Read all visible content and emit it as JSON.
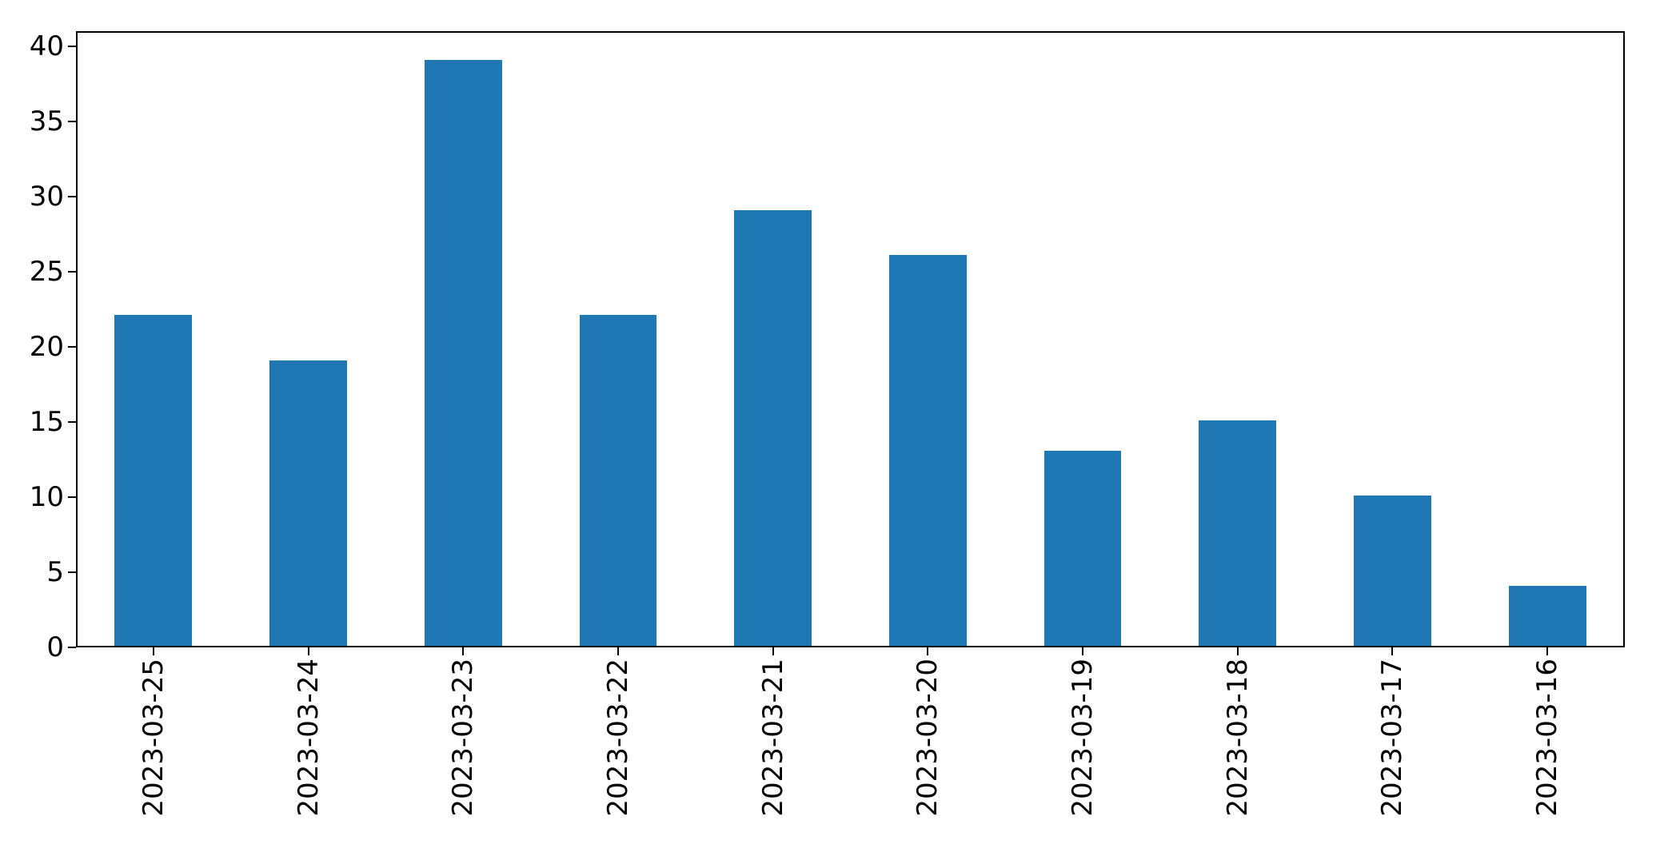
{
  "chart_data": {
    "type": "bar",
    "categories": [
      "2023-03-25",
      "2023-03-24",
      "2023-03-23",
      "2023-03-22",
      "2023-03-21",
      "2023-03-20",
      "2023-03-19",
      "2023-03-18",
      "2023-03-17",
      "2023-03-16"
    ],
    "values": [
      22,
      19,
      39,
      22,
      29,
      26,
      13,
      15,
      10,
      4
    ],
    "title": "",
    "xlabel": "",
    "ylabel": "",
    "ylim": [
      0,
      41
    ],
    "yticks": [
      0,
      5,
      10,
      15,
      20,
      25,
      30,
      35,
      40
    ],
    "x_tick_rotation": 90,
    "grid": false,
    "legend_position": "none",
    "bar_color": "#1f77b4",
    "background_color": "#ffffff",
    "spine_color": "#000000",
    "tick_label_color": "#000000"
  }
}
